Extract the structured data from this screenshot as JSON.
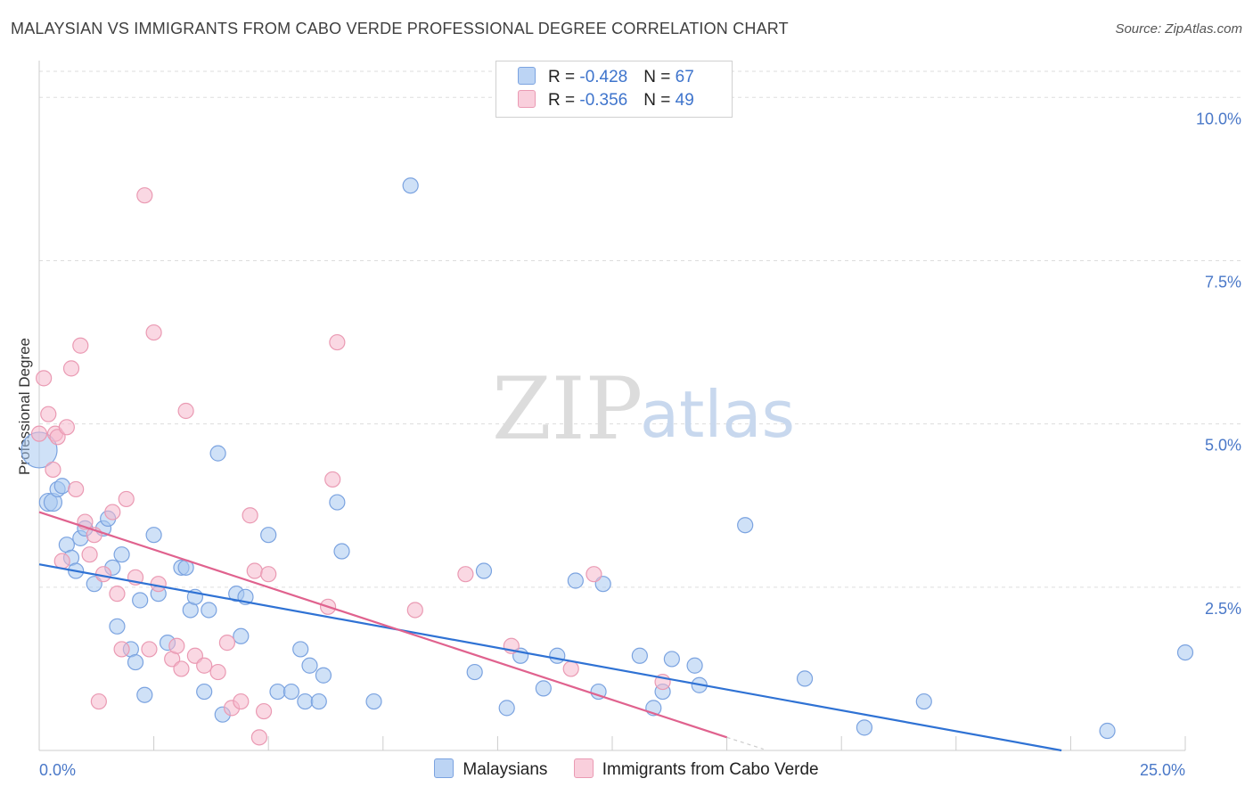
{
  "header": {
    "title": "MALAYSIAN VS IMMIGRANTS FROM CABO VERDE PROFESSIONAL DEGREE CORRELATION CHART",
    "source": "Source: ZipAtlas.com"
  },
  "watermark": {
    "zip": "ZIP",
    "atlas": "atlas"
  },
  "stats_legend": {
    "rows": [
      {
        "r_label": "R = ",
        "r_value": "-0.428",
        "n_label": "N = ",
        "n_value": "67",
        "color": "#a8c8f0"
      },
      {
        "r_label": "R = ",
        "r_value": "-0.356",
        "n_label": "N = ",
        "n_value": "49",
        "color": "#f5b8cc"
      }
    ]
  },
  "chart_data": {
    "type": "scatter",
    "title": "MALAYSIAN VS IMMIGRANTS FROM CABO VERDE PROFESSIONAL DEGREE CORRELATION CHART",
    "xlabel": "",
    "ylabel": "Professional Degree",
    "xlim": [
      0,
      25
    ],
    "ylim": [
      0,
      10.4
    ],
    "x_tick_labels": [
      {
        "value": 0,
        "label": "0.0%"
      },
      {
        "value": 25,
        "label": "25.0%"
      }
    ],
    "y_tick_labels": [
      {
        "value": 2.5,
        "label": "2.5%"
      },
      {
        "value": 5.0,
        "label": "5.0%"
      },
      {
        "value": 7.5,
        "label": "7.5%"
      },
      {
        "value": 10.0,
        "label": "10.0%"
      }
    ],
    "grid": true,
    "legend_position": "bottom-center",
    "series": [
      {
        "name": "Malaysians",
        "color": "#7ba3e0",
        "fill": "#a8c8f0",
        "line_color": "#2f72d4",
        "trend": {
          "x0": 0,
          "y0": 2.85,
          "x1": 22.3,
          "y1": 0.0
        },
        "points": [
          [
            0.0,
            4.6
          ],
          [
            0.2,
            3.8
          ],
          [
            0.3,
            3.8
          ],
          [
            0.4,
            4.0
          ],
          [
            0.5,
            4.05
          ],
          [
            0.6,
            3.15
          ],
          [
            0.7,
            2.95
          ],
          [
            0.8,
            2.75
          ],
          [
            0.9,
            3.25
          ],
          [
            1.0,
            3.4
          ],
          [
            1.2,
            2.55
          ],
          [
            1.4,
            3.4
          ],
          [
            1.5,
            3.55
          ],
          [
            1.6,
            2.8
          ],
          [
            1.7,
            1.9
          ],
          [
            1.8,
            3.0
          ],
          [
            2.0,
            1.55
          ],
          [
            2.1,
            1.35
          ],
          [
            2.2,
            2.3
          ],
          [
            2.3,
            0.85
          ],
          [
            2.5,
            3.3
          ],
          [
            2.6,
            2.4
          ],
          [
            2.8,
            1.65
          ],
          [
            3.1,
            2.8
          ],
          [
            3.2,
            2.8
          ],
          [
            3.3,
            2.15
          ],
          [
            3.4,
            2.35
          ],
          [
            3.6,
            0.9
          ],
          [
            3.7,
            2.15
          ],
          [
            3.9,
            4.55
          ],
          [
            4.0,
            0.55
          ],
          [
            4.3,
            2.4
          ],
          [
            4.4,
            1.75
          ],
          [
            4.5,
            2.35
          ],
          [
            5.0,
            3.3
          ],
          [
            5.2,
            0.9
          ],
          [
            5.5,
            0.9
          ],
          [
            5.7,
            1.55
          ],
          [
            5.8,
            0.75
          ],
          [
            5.9,
            1.3
          ],
          [
            6.1,
            0.75
          ],
          [
            6.2,
            1.15
          ],
          [
            6.5,
            3.8
          ],
          [
            6.6,
            3.05
          ],
          [
            7.3,
            0.75
          ],
          [
            8.1,
            8.65
          ],
          [
            9.5,
            1.2
          ],
          [
            9.7,
            2.75
          ],
          [
            10.2,
            0.65
          ],
          [
            10.5,
            1.45
          ],
          [
            11.0,
            0.95
          ],
          [
            11.3,
            1.45
          ],
          [
            11.7,
            2.6
          ],
          [
            12.2,
            0.9
          ],
          [
            12.3,
            2.55
          ],
          [
            13.1,
            1.45
          ],
          [
            13.4,
            0.65
          ],
          [
            13.6,
            0.9
          ],
          [
            13.8,
            1.4
          ],
          [
            14.3,
            1.3
          ],
          [
            14.4,
            1.0
          ],
          [
            15.4,
            3.45
          ],
          [
            16.7,
            1.1
          ],
          [
            18.0,
            0.35
          ],
          [
            19.3,
            0.75
          ],
          [
            23.3,
            0.3
          ],
          [
            25.0,
            1.5
          ]
        ]
      },
      {
        "name": "Immigrants from Cabo Verde",
        "color": "#ea9ab3",
        "fill": "#f5b8cc",
        "line_color": "#e0628e",
        "trend": {
          "x0": 0,
          "y0": 3.65,
          "x1": 15.0,
          "y1": 0.2
        },
        "trend_ext": {
          "x0": 15.0,
          "y0": 0.2,
          "x1": 15.8,
          "y1": 0.02
        },
        "points": [
          [
            0.0,
            4.85
          ],
          [
            0.1,
            5.7
          ],
          [
            0.2,
            5.15
          ],
          [
            0.3,
            4.3
          ],
          [
            0.35,
            4.85
          ],
          [
            0.4,
            4.8
          ],
          [
            0.5,
            2.9
          ],
          [
            0.6,
            4.95
          ],
          [
            0.7,
            5.85
          ],
          [
            0.8,
            4.0
          ],
          [
            0.9,
            6.2
          ],
          [
            1.0,
            3.5
          ],
          [
            1.1,
            3.0
          ],
          [
            1.2,
            3.3
          ],
          [
            1.3,
            0.75
          ],
          [
            1.4,
            2.7
          ],
          [
            1.6,
            3.65
          ],
          [
            1.7,
            2.4
          ],
          [
            1.8,
            1.55
          ],
          [
            1.9,
            3.85
          ],
          [
            2.1,
            2.65
          ],
          [
            2.3,
            8.5
          ],
          [
            2.4,
            1.55
          ],
          [
            2.5,
            6.4
          ],
          [
            2.6,
            2.55
          ],
          [
            2.9,
            1.4
          ],
          [
            3.0,
            1.6
          ],
          [
            3.1,
            1.25
          ],
          [
            3.2,
            5.2
          ],
          [
            3.4,
            1.45
          ],
          [
            3.6,
            1.3
          ],
          [
            3.9,
            1.2
          ],
          [
            4.1,
            1.65
          ],
          [
            4.2,
            0.65
          ],
          [
            4.4,
            0.75
          ],
          [
            4.6,
            3.6
          ],
          [
            4.7,
            2.75
          ],
          [
            4.8,
            0.2
          ],
          [
            4.9,
            0.6
          ],
          [
            5.0,
            2.7
          ],
          [
            6.3,
            2.2
          ],
          [
            6.4,
            4.15
          ],
          [
            6.5,
            6.25
          ],
          [
            8.2,
            2.15
          ],
          [
            9.3,
            2.7
          ],
          [
            10.3,
            1.6
          ],
          [
            11.6,
            1.25
          ],
          [
            12.1,
            2.7
          ],
          [
            13.6,
            1.05
          ]
        ]
      }
    ]
  }
}
